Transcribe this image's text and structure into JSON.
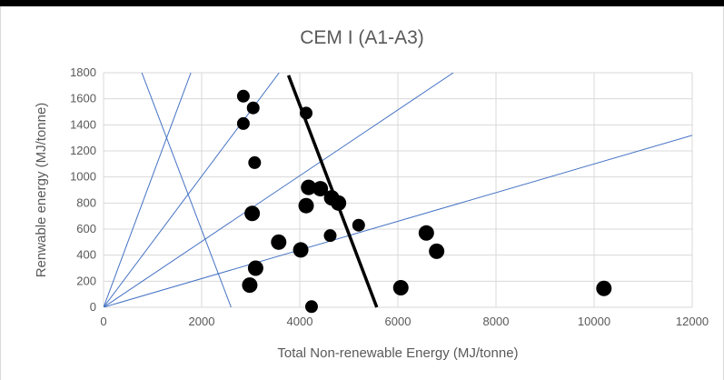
{
  "chart_data": {
    "type": "scatter",
    "title": "CEM I (A1-A3)",
    "xlabel": "Total Non-renewable Energy (MJ/tonne)",
    "ylabel": "Renwable energy (MJ/tonne)",
    "xlim": [
      0,
      12000
    ],
    "ylim": [
      0,
      1800
    ],
    "xticks": [
      0,
      2000,
      4000,
      6000,
      8000,
      10000,
      12000
    ],
    "yticks": [
      0,
      200,
      400,
      600,
      800,
      1000,
      1200,
      1400,
      1600,
      1800
    ],
    "grid": true,
    "legend": "none",
    "colors": {
      "points": "#000000",
      "reference_lines": "#4472c4",
      "fit_line": "#000000",
      "grid": "#d9d9d9",
      "text": "#595959"
    },
    "points": [
      {
        "x": 2850,
        "y": 1620,
        "size": "medium"
      },
      {
        "x": 3050,
        "y": 1530,
        "size": "medium"
      },
      {
        "x": 2850,
        "y": 1410,
        "size": "medium"
      },
      {
        "x": 4130,
        "y": 1490,
        "size": "medium"
      },
      {
        "x": 3080,
        "y": 1110,
        "size": "medium"
      },
      {
        "x": 4180,
        "y": 920,
        "size": "large"
      },
      {
        "x": 4420,
        "y": 910,
        "size": "large"
      },
      {
        "x": 4650,
        "y": 840,
        "size": "large"
      },
      {
        "x": 4790,
        "y": 800,
        "size": "large"
      },
      {
        "x": 4130,
        "y": 780,
        "size": "large"
      },
      {
        "x": 3030,
        "y": 720,
        "size": "large"
      },
      {
        "x": 5200,
        "y": 630,
        "size": "medium"
      },
      {
        "x": 4620,
        "y": 550,
        "size": "medium"
      },
      {
        "x": 3570,
        "y": 500,
        "size": "large"
      },
      {
        "x": 4020,
        "y": 440,
        "size": "large"
      },
      {
        "x": 6580,
        "y": 570,
        "size": "large"
      },
      {
        "x": 6790,
        "y": 430,
        "size": "large"
      },
      {
        "x": 3100,
        "y": 300,
        "size": "large"
      },
      {
        "x": 2980,
        "y": 170,
        "size": "large"
      },
      {
        "x": 6060,
        "y": 150,
        "size": "large"
      },
      {
        "x": 10200,
        "y": 145,
        "size": "large"
      },
      {
        "x": 4240,
        "y": 5,
        "size": "medium"
      }
    ],
    "reference_lines": [
      {
        "x1": 0,
        "y1": 0,
        "x2": 1780,
        "y2": 1800
      },
      {
        "x1": 0,
        "y1": 0,
        "x2": 3580,
        "y2": 1800
      },
      {
        "x1": 0,
        "y1": 0,
        "x2": 7130,
        "y2": 1800
      },
      {
        "x1": 0,
        "y1": 0,
        "x2": 12000,
        "y2": 1320
      },
      {
        "x1": 780,
        "y1": 1800,
        "x2": 2600,
        "y2": 0
      }
    ],
    "fit_line": {
      "x1": 3770,
      "y1": 1780,
      "x2": 5570,
      "y2": 0
    }
  }
}
